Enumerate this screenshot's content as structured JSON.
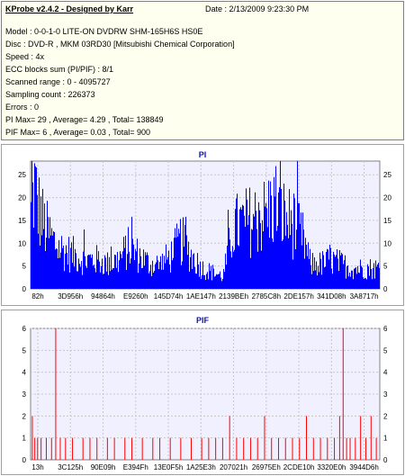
{
  "header": {
    "title": "KProbe v2.4.2 - Designed by Karr",
    "date": "Date : 2/13/2009 9:23:30 PM"
  },
  "info_lines": [
    "Model : 0-0-1-0 LITE-ON DVDRW SHM-165H6S HS0E",
    "Disc : DVD-R , MKM 03RD30   [Mitsubishi Chemical Corporation]",
    "Speed : 4x",
    "ECC blocks sum (PI/PIF) : 8/1",
    "Scanned range : 0 - 4095727",
    "Sampling count : 226373",
    "Errors : 0",
    "PI Max= 29 , Average= 4.29 , Total= 138849",
    "PIF Max= 6 , Average= 0.03 , Total= 900"
  ],
  "colors": {
    "pi_series": "#0000ff",
    "pif_series": "#ff0000",
    "plot_bg": "#f0f0ff",
    "grid": "#c8c8c8"
  },
  "chart_data": [
    {
      "type": "bar",
      "title": "PI",
      "ylim": [
        0,
        28
      ],
      "yticks": [
        0,
        5,
        10,
        15,
        20,
        25
      ],
      "xticks": [
        "82h",
        "3D956h",
        "94864h",
        "E9260h",
        "145D74h",
        "1AE147h",
        "2139BEh",
        "2785C8h",
        "2DE157h",
        "341D08h",
        "3A8717h"
      ],
      "grid": true,
      "series": [
        {
          "values_profile": [
            [
              0.0,
              18
            ],
            [
              0.01,
              25
            ],
            [
              0.02,
              20
            ],
            [
              0.04,
              15
            ],
            [
              0.06,
              12
            ],
            [
              0.08,
              10
            ],
            [
              0.1,
              9
            ],
            [
              0.13,
              8
            ],
            [
              0.16,
              7
            ],
            [
              0.19,
              7
            ],
            [
              0.22,
              6
            ],
            [
              0.25,
              7
            ],
            [
              0.28,
              10
            ],
            [
              0.31,
              8
            ],
            [
              0.34,
              6
            ],
            [
              0.37,
              6
            ],
            [
              0.4,
              8
            ],
            [
              0.43,
              12
            ],
            [
              0.46,
              8
            ],
            [
              0.49,
              5
            ],
            [
              0.52,
              4
            ],
            [
              0.55,
              3
            ],
            [
              0.58,
              15
            ],
            [
              0.61,
              16
            ],
            [
              0.64,
              17
            ],
            [
              0.67,
              18
            ],
            [
              0.7,
              21
            ],
            [
              0.73,
              17
            ],
            [
              0.76,
              15
            ],
            [
              0.78,
              12
            ],
            [
              0.8,
              6
            ],
            [
              0.83,
              6
            ],
            [
              0.86,
              7
            ],
            [
              0.89,
              6
            ],
            [
              0.92,
              5
            ],
            [
              0.95,
              5
            ],
            [
              1.0,
              5
            ]
          ]
        }
      ]
    },
    {
      "type": "bar",
      "title": "PIF",
      "ylim": [
        0,
        6
      ],
      "yticks": [
        0,
        1,
        2,
        3,
        4,
        5,
        6
      ],
      "xticks": [
        "13h",
        "3C125h",
        "90E09h",
        "E394Fh",
        "13E0F5h",
        "1A25E3h",
        "207021h",
        "26975Eh",
        "2CDE10h",
        "3320E0h",
        "3944D6h"
      ],
      "grid": true,
      "series": [
        {
          "spikes": [
            [
              0.005,
              2
            ],
            [
              0.012,
              1
            ],
            [
              0.02,
              1
            ],
            [
              0.03,
              1
            ],
            [
              0.045,
              1
            ],
            [
              0.06,
              1
            ],
            [
              0.072,
              6
            ],
            [
              0.085,
              1
            ],
            [
              0.1,
              1
            ],
            [
              0.12,
              1
            ],
            [
              0.15,
              1
            ],
            [
              0.17,
              1
            ],
            [
              0.19,
              1
            ],
            [
              0.22,
              1
            ],
            [
              0.24,
              1
            ],
            [
              0.27,
              1
            ],
            [
              0.29,
              1
            ],
            [
              0.32,
              1
            ],
            [
              0.35,
              1
            ],
            [
              0.37,
              1
            ],
            [
              0.4,
              1
            ],
            [
              0.43,
              1
            ],
            [
              0.46,
              1
            ],
            [
              0.49,
              1
            ],
            [
              0.51,
              1
            ],
            [
              0.53,
              1
            ],
            [
              0.55,
              1
            ],
            [
              0.57,
              2
            ],
            [
              0.59,
              1
            ],
            [
              0.61,
              1
            ],
            [
              0.63,
              1
            ],
            [
              0.65,
              1
            ],
            [
              0.67,
              2
            ],
            [
              0.69,
              1
            ],
            [
              0.71,
              1
            ],
            [
              0.73,
              1
            ],
            [
              0.75,
              1
            ],
            [
              0.77,
              1
            ],
            [
              0.79,
              2
            ],
            [
              0.81,
              1
            ],
            [
              0.83,
              1
            ],
            [
              0.85,
              1
            ],
            [
              0.87,
              1
            ],
            [
              0.885,
              2
            ],
            [
              0.895,
              6
            ],
            [
              0.905,
              1
            ],
            [
              0.915,
              1
            ],
            [
              0.93,
              1
            ],
            [
              0.945,
              2
            ],
            [
              0.96,
              1
            ],
            [
              0.975,
              2
            ],
            [
              0.99,
              1
            ]
          ]
        }
      ]
    }
  ]
}
